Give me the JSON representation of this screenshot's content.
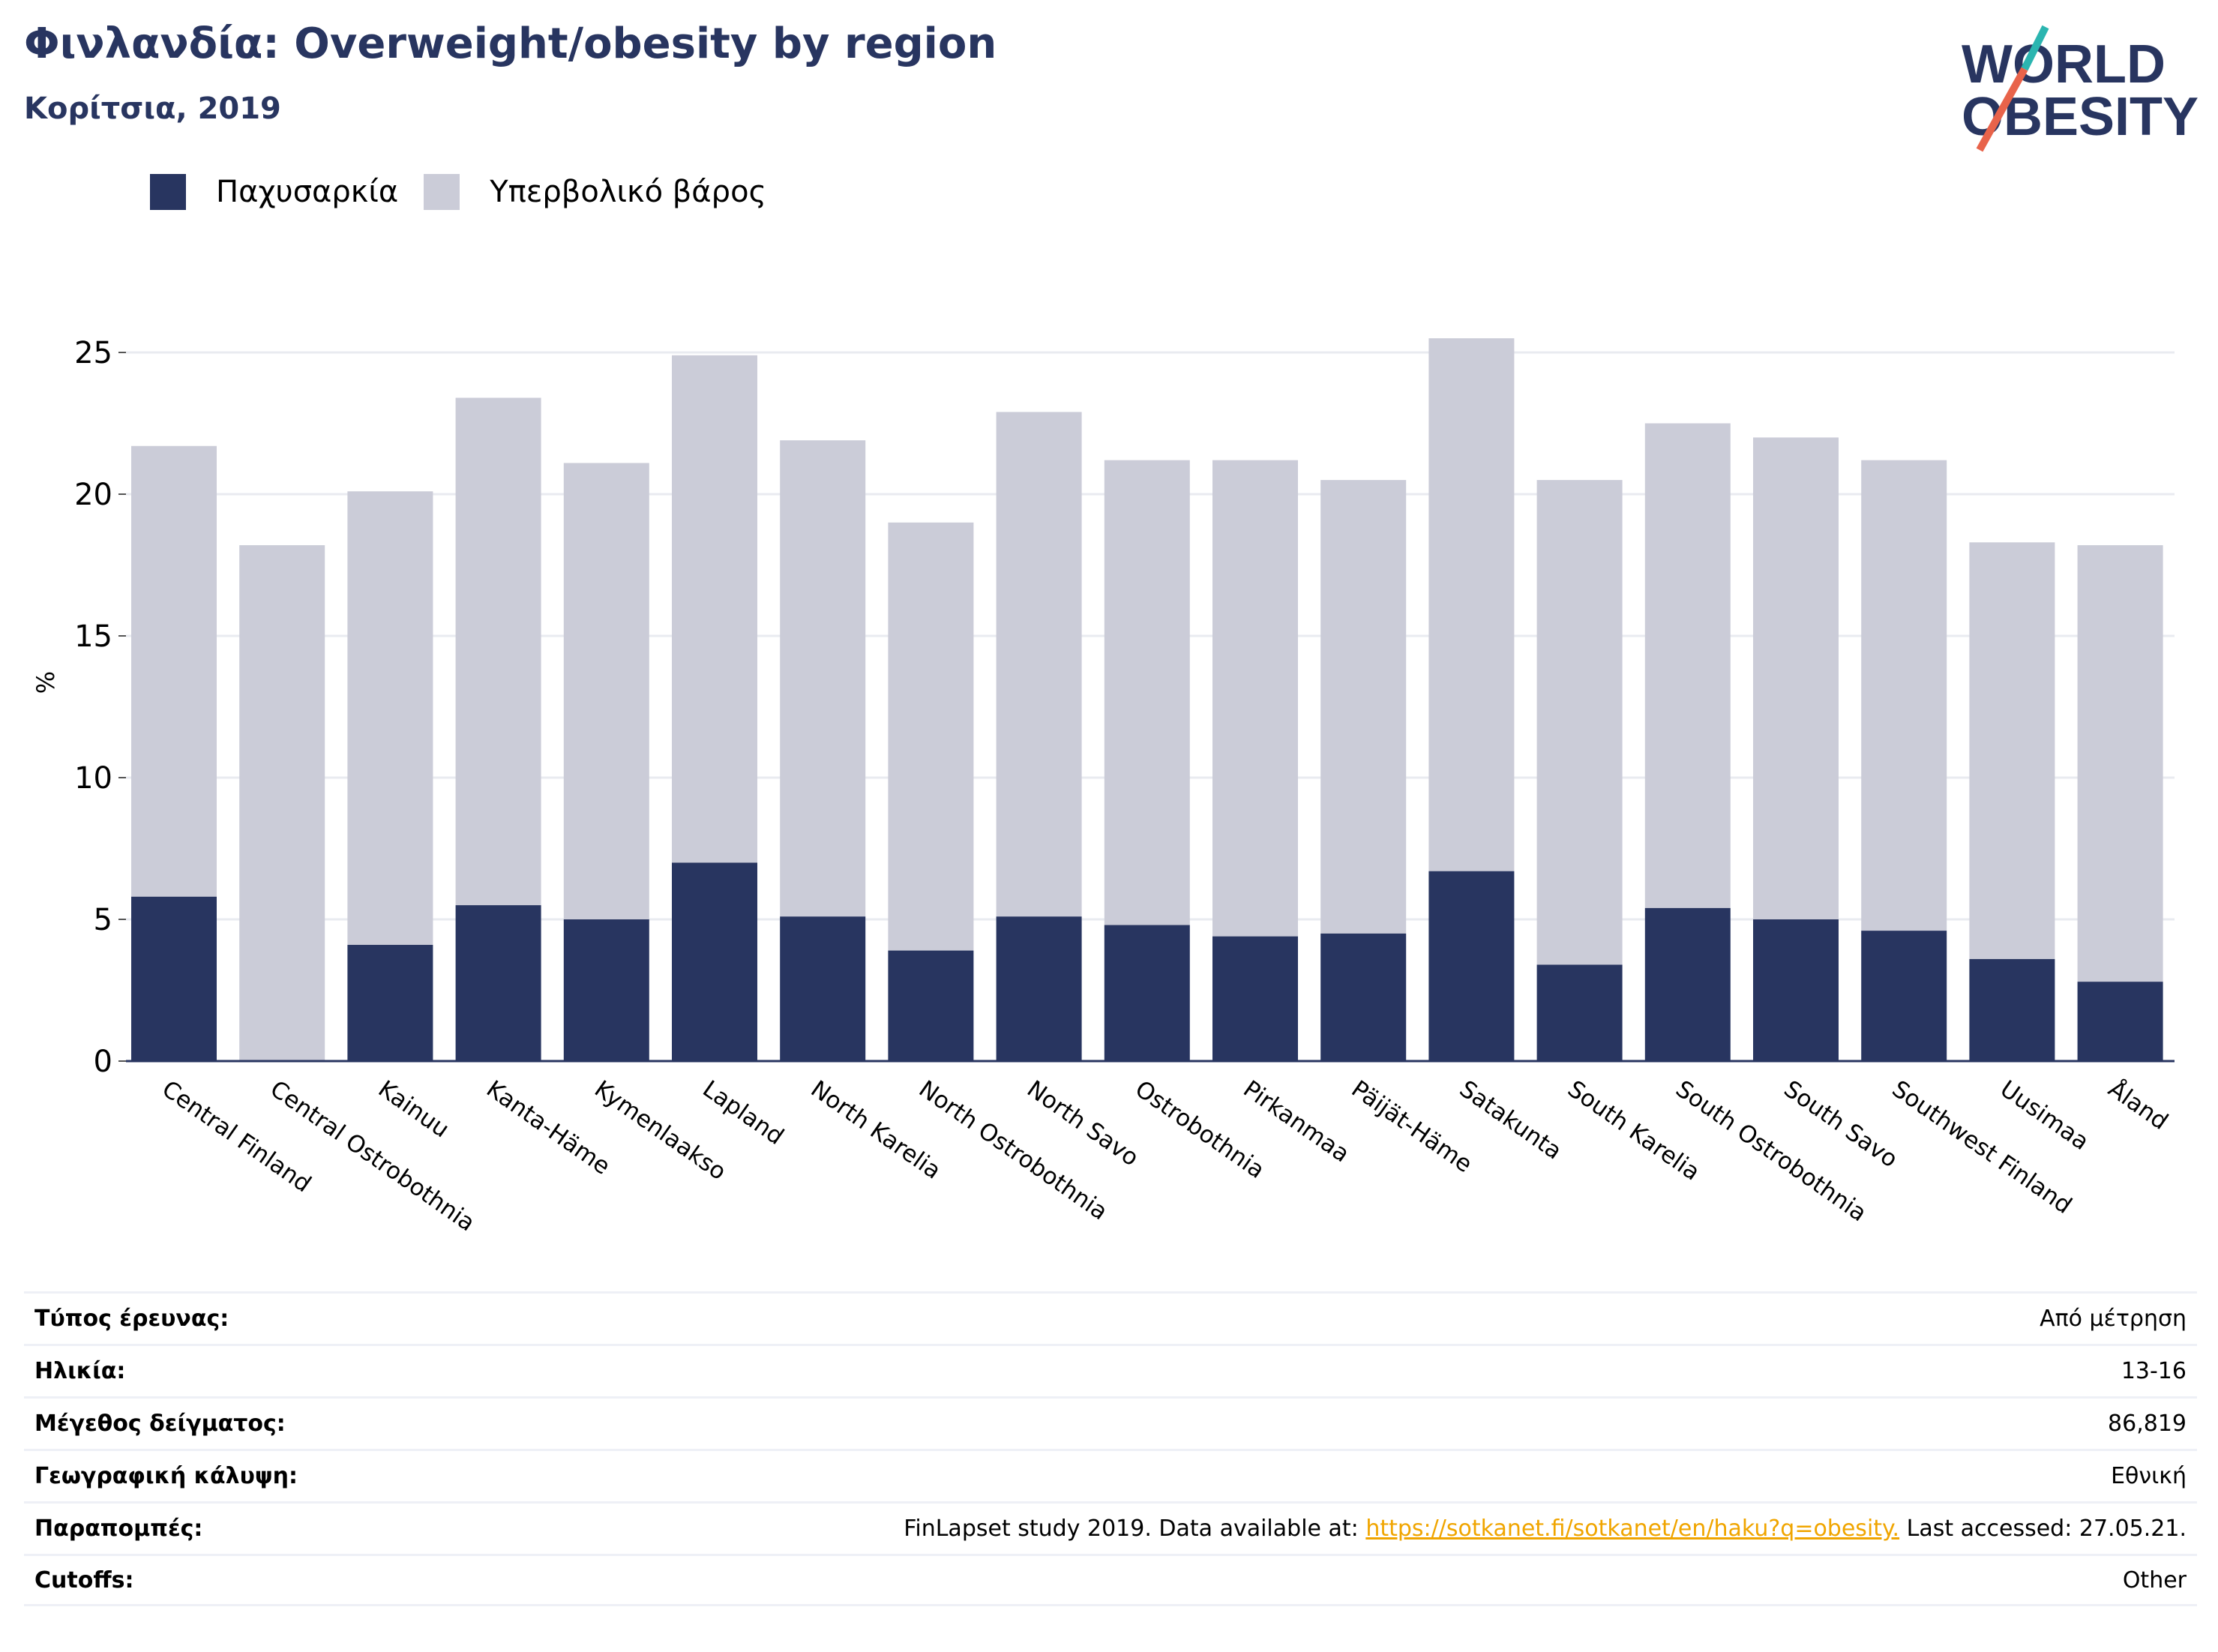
{
  "header": {
    "title": "Φινλανδία: Overweight/obesity by region",
    "subtitle": "Κορίτσια, 2019"
  },
  "logo": {
    "line1": "WORLD",
    "line2": "OBESITY"
  },
  "colors": {
    "obesity": "#283560",
    "overweight": "#cbccd8",
    "axis": "#283560",
    "grid": "#e9ebf0",
    "link": "#f0a500",
    "logo_slash_top": "#2bb5b0",
    "logo_slash_bottom": "#e8634a"
  },
  "chart_data": {
    "type": "bar",
    "stacked": true,
    "categories": [
      "Central Finland",
      "Central Ostrobothnia",
      "Kainuu",
      "Kanta-Häme",
      "Kymenlaakso",
      "Lapland",
      "North Karelia",
      "North Ostrobothnia",
      "North Savo",
      "Ostrobothnia",
      "Pirkanmaa",
      "Päijät-Häme",
      "Satakunta",
      "South Karelia",
      "South Ostrobothnia",
      "South Savo",
      "Southwest Finland",
      "Uusimaa",
      "Åland"
    ],
    "series": [
      {
        "name": "Παχυσαρκία",
        "values": [
          5.8,
          0,
          4.1,
          5.5,
          5.0,
          7.0,
          5.1,
          3.9,
          5.1,
          4.8,
          4.4,
          4.5,
          6.7,
          3.4,
          5.4,
          5.0,
          4.6,
          3.6,
          2.8
        ]
      },
      {
        "name": "Υπερβολικό βάρος",
        "values": [
          15.9,
          18.2,
          16.0,
          17.9,
          16.1,
          17.9,
          16.8,
          15.1,
          17.8,
          16.4,
          16.8,
          16.0,
          18.8,
          17.1,
          17.1,
          17.0,
          16.6,
          14.7,
          15.4
        ]
      }
    ],
    "ylabel": "%",
    "xlabel": "",
    "ylim": [
      0,
      27.5
    ],
    "yticks": [
      0,
      5,
      10,
      15,
      20,
      25
    ],
    "grid": true,
    "legend": "top-left"
  },
  "info": {
    "survey_type_label": "Τύπος έρευνας:",
    "survey_type_value": "Από μέτρηση",
    "age_label": "Ηλικία:",
    "age_value": "13-16",
    "sample_label": "Μέγεθος δείγματος:",
    "sample_value": "86,819",
    "coverage_label": "Γεωγραφική κάλυψη:",
    "coverage_value": "Εθνική",
    "references_label": "Παραπομπές:",
    "references_prefix": "FinLapset study 2019. Data available at: ",
    "references_link": "https://sotkanet.fi/sotkanet/en/haku?q=obesity.",
    "references_suffix": " Last accessed: 27.05.21.",
    "cutoffs_label": "Cutoffs:",
    "cutoffs_value": "Other"
  }
}
